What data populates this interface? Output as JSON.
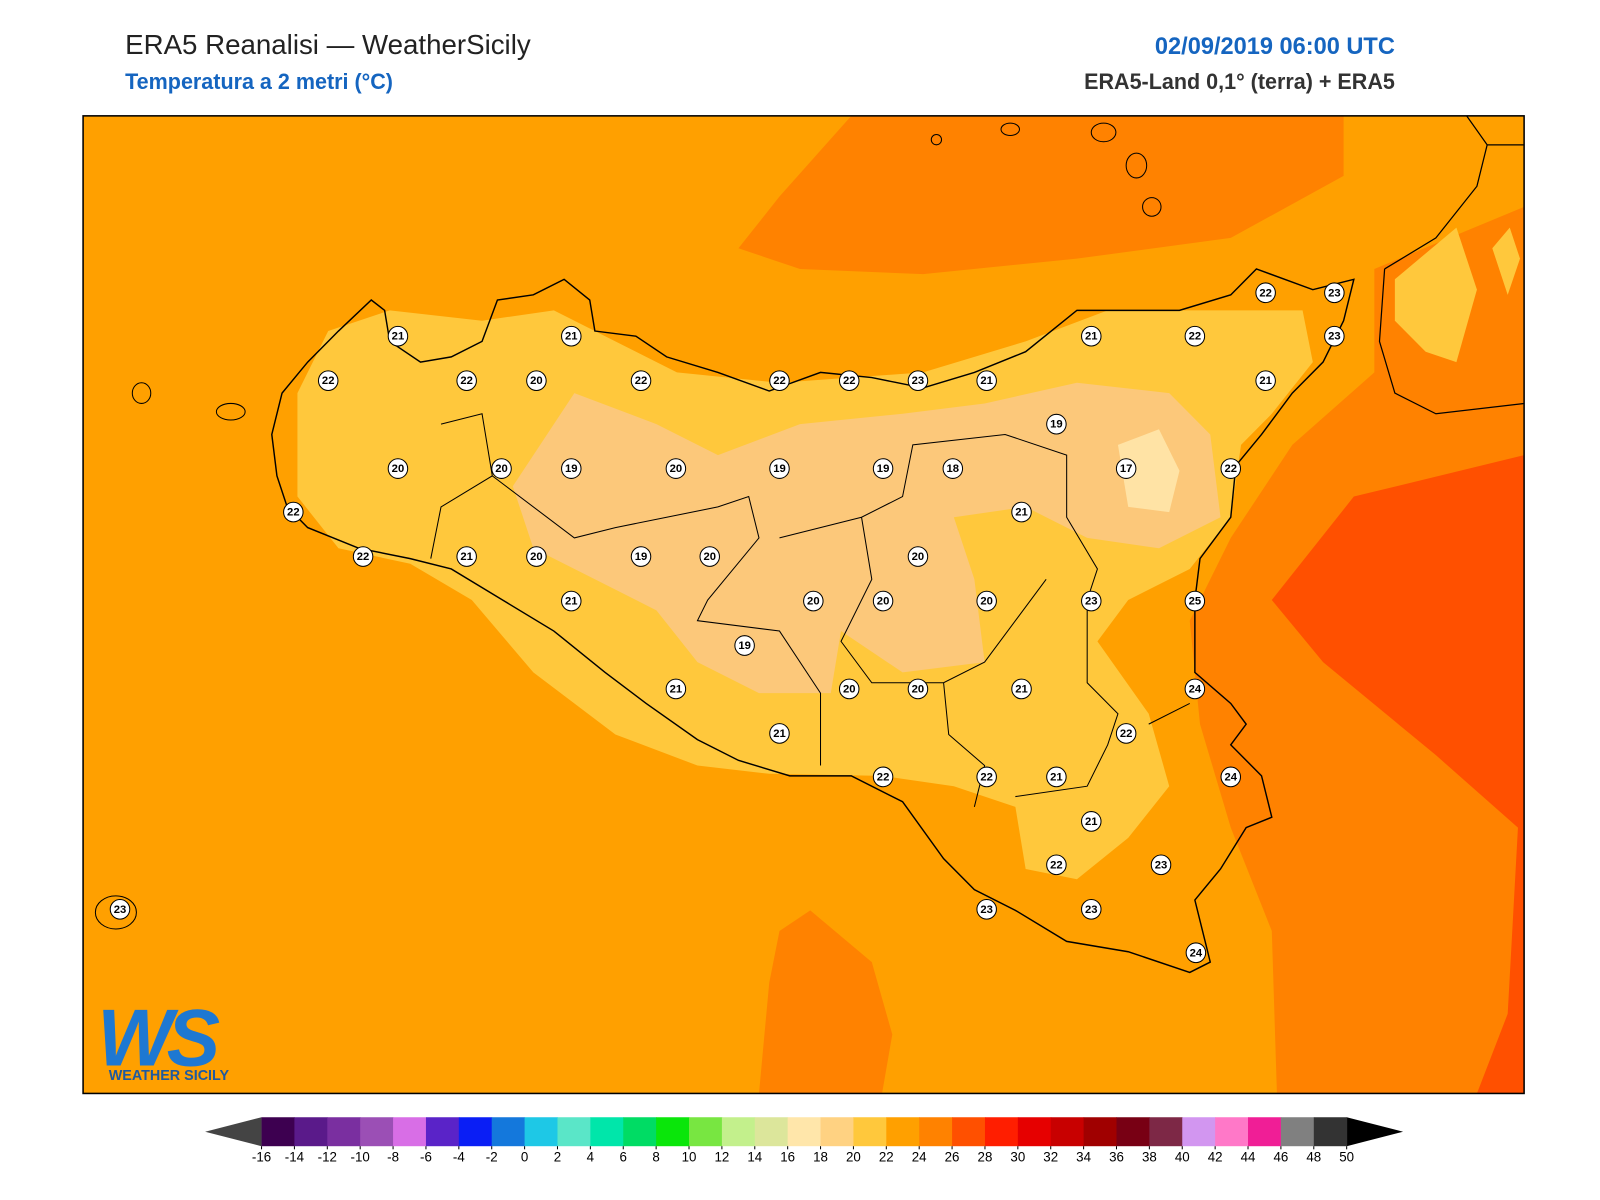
{
  "header": {
    "title": "ERA5 Reanalisi — WeatherSicily",
    "subtitle": "Temperatura a 2 metri (°C)",
    "date": "02/09/2019 06:00 UTC",
    "source": "ERA5-Land 0,1° (terra) + ERA5"
  },
  "stations": [
    21,
    21,
    22,
    22,
    20,
    22,
    22,
    22,
    23,
    21,
    21,
    22,
    22,
    23,
    23,
    21,
    19,
    20,
    20,
    19,
    20,
    19,
    19,
    18,
    17,
    22,
    22,
    21,
    22,
    21,
    20,
    19,
    20,
    20,
    21,
    20,
    20,
    20,
    23,
    25,
    19,
    21,
    20,
    20,
    21,
    24,
    21,
    22,
    22,
    22,
    21,
    24,
    21,
    22,
    23,
    23,
    23,
    23,
    24
  ],
  "logo": {
    "letters": "WS",
    "name": "WEATHER SICILY"
  },
  "colorbar": {
    "ticks": [
      -16,
      -14,
      -12,
      -10,
      -8,
      -6,
      -4,
      -2,
      0,
      2,
      4,
      6,
      8,
      10,
      12,
      14,
      16,
      18,
      20,
      22,
      24,
      26,
      28,
      30,
      32,
      34,
      36,
      38,
      40,
      42,
      44,
      46,
      48,
      50
    ],
    "colors": [
      "#3d0050",
      "#5a1a8a",
      "#7a2fa0",
      "#9b4fb5",
      "#d86ee6",
      "#5a23c8",
      "#0a1ef5",
      "#1478dc",
      "#1ec8e6",
      "#5ae6c8",
      "#00e6aa",
      "#00dc64",
      "#0ae60a",
      "#78e641",
      "#c3f08c",
      "#dce69b",
      "#ffe6aa",
      "#ffd282",
      "#ffc83c",
      "#ffa000",
      "#ff8200",
      "#ff5000",
      "#ff1e00",
      "#e60000",
      "#c80000",
      "#a00000",
      "#780014",
      "#7d2846",
      "#d296f0",
      "#ff78c8",
      "#f01e96",
      "#808080",
      "#333333"
    ],
    "under_color": "#444444",
    "over_color": "#000000"
  }
}
